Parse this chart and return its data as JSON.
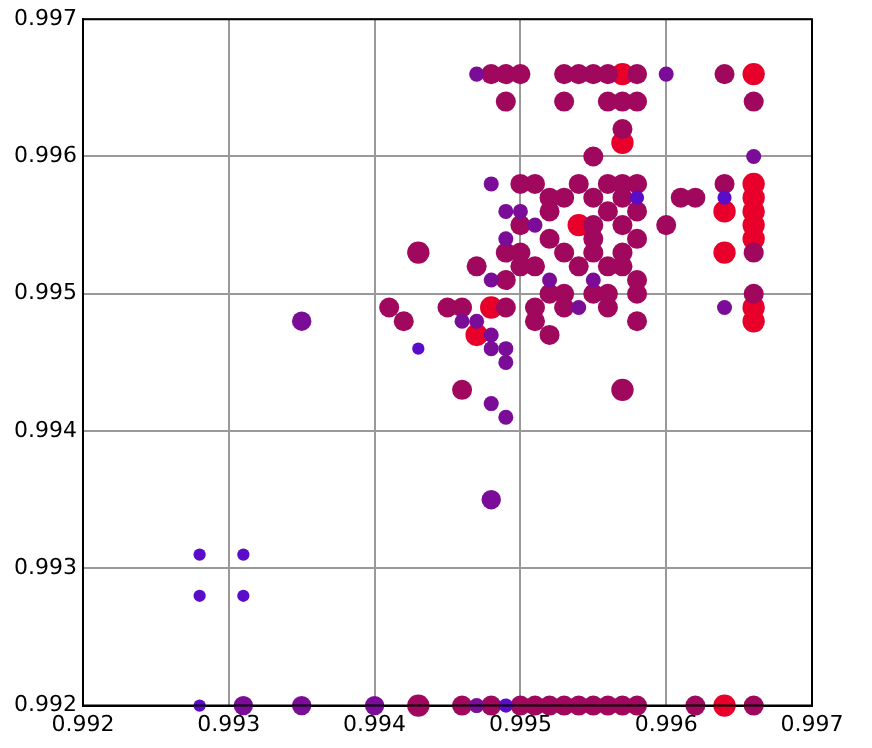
{
  "chart_data": {
    "type": "bubble",
    "xlim": [
      0.992,
      0.997
    ],
    "ylim": [
      0.992,
      0.997
    ],
    "xticks": [
      0.992,
      0.993,
      0.994,
      0.995,
      0.996,
      0.997
    ],
    "yticks": [
      0.992,
      0.993,
      0.994,
      0.995,
      0.996,
      0.997
    ],
    "grid": true,
    "legend": false,
    "series": [
      {
        "color": "#5a0cc8",
        "x": [
          0.9928,
          0.9931,
          0.9928,
          0.9931,
          0.9928,
          0.9943,
          0.9958,
          0.9964,
          0.9949
        ],
        "values": [
          0.9931,
          0.9931,
          0.9928,
          0.9928,
          0.992,
          0.9946,
          0.9957,
          0.9957,
          0.992
        ],
        "sizes": [
          0.3,
          0.3,
          0.3,
          0.3,
          0.3,
          0.3,
          0.4,
          0.4,
          0.4
        ]
      },
      {
        "color": "#7a0c98",
        "x": [
          0.9947,
          0.996,
          0.9966,
          0.9948,
          0.9949,
          0.995,
          0.9951,
          0.9949,
          0.9948,
          0.9952,
          0.9955,
          0.9954,
          0.9964,
          0.9946,
          0.9947,
          0.9948,
          0.9948,
          0.9949,
          0.9949,
          0.9948,
          0.9949,
          0.9947,
          0.9935,
          0.9948,
          0.9931,
          0.9935,
          0.994
        ],
        "values": [
          0.9966,
          0.9966,
          0.996,
          0.9958,
          0.9956,
          0.9956,
          0.9955,
          0.9954,
          0.9951,
          0.9951,
          0.9951,
          0.9949,
          0.9949,
          0.9948,
          0.9948,
          0.9947,
          0.9946,
          0.9946,
          0.9945,
          0.9942,
          0.9941,
          0.992,
          0.9948,
          0.9935,
          0.992,
          0.992,
          0.992
        ],
        "sizes": [
          0.45,
          0.45,
          0.45,
          0.45,
          0.45,
          0.45,
          0.45,
          0.45,
          0.45,
          0.45,
          0.45,
          0.45,
          0.45,
          0.45,
          0.45,
          0.45,
          0.45,
          0.45,
          0.45,
          0.45,
          0.45,
          0.45,
          0.75,
          0.75,
          0.75,
          0.75,
          0.75
        ]
      },
      {
        "color": "#a0085e",
        "x": [
          0.9948,
          0.9949,
          0.995,
          0.9953,
          0.9954,
          0.9955,
          0.9956,
          0.9958,
          0.9964,
          0.9949,
          0.9953,
          0.9956,
          0.9957,
          0.9958,
          0.9966,
          0.9957,
          0.9955,
          0.995,
          0.9951,
          0.9954,
          0.9956,
          0.9957,
          0.9958,
          0.9964,
          0.9952,
          0.9953,
          0.9955,
          0.9957,
          0.9961,
          0.9962,
          0.9952,
          0.9956,
          0.9958,
          0.995,
          0.9955,
          0.9957,
          0.996,
          0.9952,
          0.9955,
          0.9958,
          0.9949,
          0.995,
          0.9953,
          0.9955,
          0.9957,
          0.9943,
          0.9947,
          0.995,
          0.9951,
          0.9954,
          0.9956,
          0.9957,
          0.9949,
          0.9958,
          0.9952,
          0.9953,
          0.9955,
          0.9956,
          0.9958,
          0.9966,
          0.9966,
          0.9945,
          0.9946,
          0.9949,
          0.9951,
          0.9953,
          0.9956,
          0.9941,
          0.9951,
          0.9958,
          0.9942,
          0.9952,
          0.9946,
          0.9957,
          0.9943,
          0.9946,
          0.9948,
          0.995,
          0.9951,
          0.9952,
          0.9953,
          0.9954,
          0.9955,
          0.9956,
          0.9957,
          0.9958,
          0.9962,
          0.9966
        ],
        "values": [
          0.9966,
          0.9966,
          0.9966,
          0.9966,
          0.9966,
          0.9966,
          0.9966,
          0.9966,
          0.9966,
          0.9964,
          0.9964,
          0.9964,
          0.9964,
          0.9964,
          0.9964,
          0.9962,
          0.996,
          0.9958,
          0.9958,
          0.9958,
          0.9958,
          0.9958,
          0.9958,
          0.9958,
          0.9957,
          0.9957,
          0.9957,
          0.9957,
          0.9957,
          0.9957,
          0.9956,
          0.9956,
          0.9956,
          0.9955,
          0.9955,
          0.9955,
          0.9955,
          0.9954,
          0.9954,
          0.9954,
          0.9953,
          0.9953,
          0.9953,
          0.9953,
          0.9953,
          0.9953,
          0.9952,
          0.9952,
          0.9952,
          0.9952,
          0.9952,
          0.9952,
          0.9951,
          0.9951,
          0.995,
          0.995,
          0.995,
          0.995,
          0.995,
          0.995,
          0.9953,
          0.9949,
          0.9949,
          0.9949,
          0.9949,
          0.9949,
          0.9949,
          0.9949,
          0.9948,
          0.9948,
          0.9948,
          0.9947,
          0.9943,
          0.9943,
          0.992,
          0.992,
          0.992,
          0.992,
          0.992,
          0.992,
          0.992,
          0.992,
          0.992,
          0.992,
          0.992,
          0.992,
          0.992,
          0.992
        ],
        "sizes": [
          0.8,
          0.8,
          0.8,
          0.8,
          0.8,
          0.8,
          0.8,
          0.8,
          0.8,
          0.8,
          0.8,
          0.8,
          0.8,
          0.8,
          0.8,
          0.8,
          0.8,
          0.8,
          0.8,
          0.8,
          0.8,
          0.8,
          0.8,
          0.8,
          0.8,
          0.8,
          0.8,
          0.8,
          0.8,
          0.8,
          0.8,
          0.8,
          0.8,
          0.8,
          0.8,
          0.8,
          0.8,
          0.8,
          0.8,
          0.8,
          0.8,
          0.8,
          0.8,
          0.8,
          0.8,
          1,
          0.8,
          0.8,
          0.8,
          0.8,
          0.8,
          0.8,
          0.8,
          0.8,
          0.8,
          0.8,
          0.8,
          0.8,
          0.8,
          0.8,
          0.8,
          0.8,
          0.8,
          0.8,
          0.8,
          0.8,
          0.8,
          0.8,
          0.8,
          0.8,
          0.8,
          0.8,
          0.8,
          1,
          1,
          0.8,
          0.8,
          0.8,
          0.8,
          0.8,
          0.8,
          0.8,
          0.8,
          0.8,
          0.8,
          0.8,
          0.8,
          0.8
        ]
      },
      {
        "color": "#e8002a",
        "x": [
          0.9957,
          0.9966,
          0.9957,
          0.9964,
          0.9954,
          0.9964,
          0.9966,
          0.9966,
          0.9966,
          0.9966,
          0.9966,
          0.9966,
          0.9966,
          0.9948,
          0.9947,
          0.9964
        ],
        "values": [
          0.9966,
          0.9966,
          0.9961,
          0.9956,
          0.9955,
          0.9953,
          0.9958,
          0.9957,
          0.9956,
          0.9955,
          0.9954,
          0.9949,
          0.9948,
          0.9949,
          0.9947,
          0.992
        ],
        "sizes": [
          1,
          1,
          1,
          1,
          1,
          1,
          1,
          1,
          1,
          1,
          1,
          1,
          1,
          1,
          1,
          1
        ]
      }
    ]
  }
}
